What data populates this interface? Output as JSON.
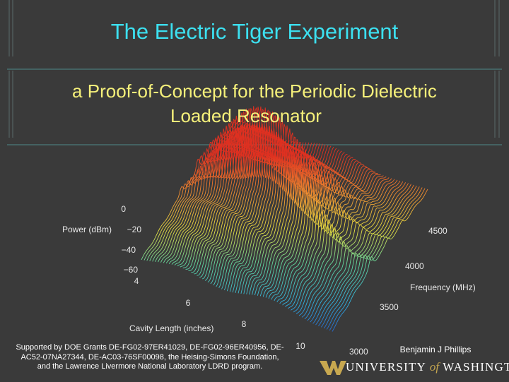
{
  "title": "The Electric Tiger Experiment",
  "subtitle": [
    "a Proof-of-Concept for the Periodic Dielectric",
    "Loaded Resonator"
  ],
  "figure": {
    "z_axis": {
      "label": "Power (dBm)",
      "ticks": [
        "0",
        "−20",
        "−40",
        "−60"
      ]
    },
    "x_axis": {
      "label": "Cavity Length (inches)",
      "ticks": [
        "4",
        "6",
        "8",
        "10"
      ]
    },
    "y_axis": {
      "label": "Frequency (MHz)",
      "ticks": [
        "4500",
        "4000",
        "3500",
        "3000"
      ]
    }
  },
  "footer": {
    "funding": [
      "Supported by DOE Grants DE-FG02-97ER41029, DE-FG02-96ER40956, DE-",
      "AC52-07NA27344, DE-AC03-76SF00098, the Heising-Simons Foundation,",
      "and the Lawrence Livermore National Laboratory LDRD program."
    ],
    "author": "Benjamin J Phillips",
    "institution": {
      "prefix": "UNIVERSITY",
      "of": "of",
      "name": "WASHINGTON"
    }
  }
}
